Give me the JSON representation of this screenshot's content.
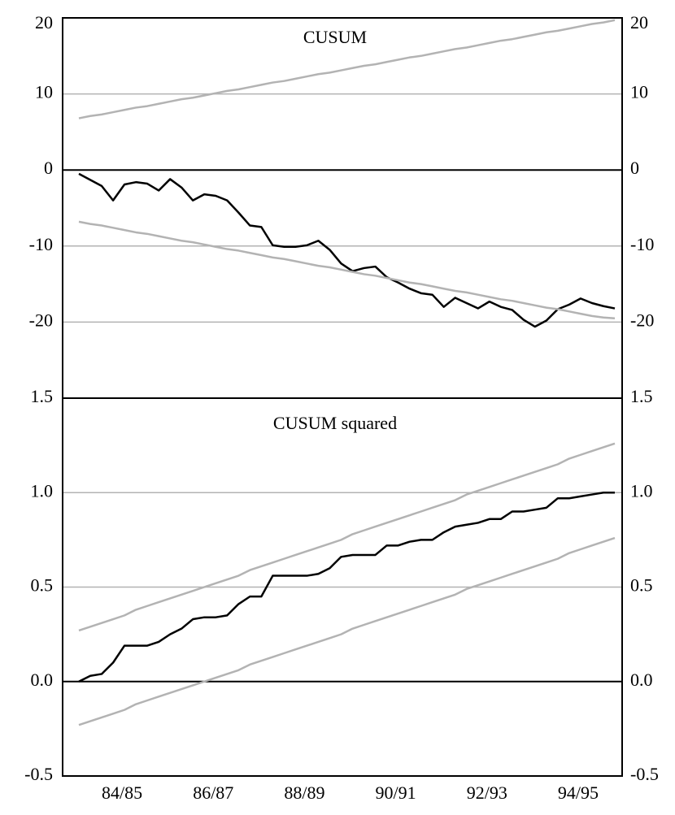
{
  "chart_data": [
    {
      "type": "line",
      "title": "CUSUM",
      "ylim": [
        -30,
        20
      ],
      "yticks": [
        -20,
        -10,
        0,
        10,
        20
      ],
      "grid": true,
      "series": [
        {
          "color": "#000000",
          "values": [
            -0.5,
            -1.3,
            -2.1,
            -4,
            -1.9,
            -1.6,
            -1.8,
            -2.7,
            -1.2,
            -2.3,
            -4,
            -3.2,
            -3.4,
            -4,
            -5.6,
            -7.3,
            -7.5,
            -9.9,
            -10.1,
            -10.1,
            -9.9,
            -9.3,
            -10.5,
            -12.3,
            -13.3,
            -12.9,
            -12.7,
            -14.1,
            -14.8,
            -15.6,
            -16.2,
            -16.4,
            -18,
            -16.8,
            -17.5,
            -18.2,
            -17.3,
            -18,
            -18.4,
            -19.7,
            -20.6,
            -19.8,
            -18.3,
            -17.7,
            -16.9,
            -17.5,
            -17.9,
            -18.2
          ]
        },
        {
          "color": "#b3b3b3",
          "values": [
            6.8,
            7.1,
            7.3,
            7.6,
            7.9,
            8.2,
            8.4,
            8.7,
            9.0,
            9.3,
            9.5,
            9.8,
            10.1,
            10.4,
            10.6,
            10.9,
            11.2,
            11.5,
            11.7,
            12.0,
            12.3,
            12.6,
            12.8,
            13.1,
            13.4,
            13.7,
            13.9,
            14.2,
            14.5,
            14.8,
            15.0,
            15.3,
            15.6,
            15.9,
            16.1,
            16.4,
            16.7,
            17.0,
            17.2,
            17.5,
            17.8,
            18.1,
            18.3,
            18.6,
            18.9,
            19.2,
            19.4,
            19.7
          ]
        },
        {
          "color": "#b3b3b3",
          "values": [
            -6.8,
            -7.1,
            -7.3,
            -7.6,
            -7.9,
            -8.2,
            -8.4,
            -8.7,
            -9.0,
            -9.3,
            -9.5,
            -9.8,
            -10.1,
            -10.4,
            -10.6,
            -10.9,
            -11.2,
            -11.5,
            -11.7,
            -12.0,
            -12.3,
            -12.6,
            -12.8,
            -13.1,
            -13.4,
            -13.7,
            -13.9,
            -14.2,
            -14.5,
            -14.8,
            -15.0,
            -15.3,
            -15.6,
            -15.9,
            -16.1,
            -16.4,
            -16.7,
            -17.0,
            -17.2,
            -17.5,
            -17.8,
            -18.1,
            -18.3,
            -18.6,
            -18.9,
            -19.2,
            -19.4,
            -19.5
          ]
        }
      ]
    },
    {
      "type": "line",
      "title": "CUSUM squared",
      "categories": [
        null,
        null,
        null,
        null,
        "84/85",
        null,
        null,
        null,
        null,
        null,
        null,
        null,
        "86/87",
        null,
        null,
        null,
        null,
        null,
        null,
        null,
        "88/89",
        null,
        null,
        null,
        null,
        null,
        null,
        null,
        "90/91",
        null,
        null,
        null,
        null,
        null,
        null,
        null,
        "92/93",
        null,
        null,
        null,
        null,
        null,
        null,
        null,
        "94/95",
        null,
        null,
        null
      ],
      "ylim": [
        -0.5,
        1.5
      ],
      "yticks": [
        -0.5,
        {
          "value": 0,
          "label": "0.0"
        },
        0.5,
        {
          "value": 1,
          "label": "1.0"
        },
        1.5
      ],
      "grid": true,
      "series": [
        {
          "color": "#000000",
          "values": [
            0.0,
            0.03,
            0.04,
            0.1,
            0.19,
            0.19,
            0.19,
            0.21,
            0.25,
            0.28,
            0.33,
            0.34,
            0.34,
            0.35,
            0.41,
            0.45,
            0.45,
            0.56,
            0.56,
            0.56,
            0.56,
            0.57,
            0.6,
            0.66,
            0.67,
            0.67,
            0.67,
            0.72,
            0.72,
            0.74,
            0.75,
            0.75,
            0.79,
            0.82,
            0.83,
            0.84,
            0.86,
            0.86,
            0.9,
            0.9,
            0.91,
            0.92,
            0.97,
            0.97,
            0.98,
            0.99,
            1.0,
            1.0
          ]
        },
        {
          "color": "#b3b3b3",
          "values": [
            0.27,
            0.29,
            0.31,
            0.33,
            0.35,
            0.38,
            0.4,
            0.42,
            0.44,
            0.46,
            0.48,
            0.5,
            0.52,
            0.54,
            0.56,
            0.59,
            0.61,
            0.63,
            0.65,
            0.67,
            0.69,
            0.71,
            0.73,
            0.75,
            0.78,
            0.8,
            0.82,
            0.84,
            0.86,
            0.88,
            0.9,
            0.92,
            0.94,
            0.96,
            0.99,
            1.01,
            1.03,
            1.05,
            1.07,
            1.09,
            1.11,
            1.13,
            1.15,
            1.18,
            1.2,
            1.22,
            1.24,
            1.26
          ]
        },
        {
          "color": "#b3b3b3",
          "values": [
            -0.23,
            -0.21,
            -0.19,
            -0.17,
            -0.15,
            -0.12,
            -0.1,
            -0.08,
            -0.06,
            -0.04,
            -0.02,
            0.0,
            0.02,
            0.04,
            0.06,
            0.09,
            0.11,
            0.13,
            0.15,
            0.17,
            0.19,
            0.21,
            0.23,
            0.25,
            0.28,
            0.3,
            0.32,
            0.34,
            0.36,
            0.38,
            0.4,
            0.42,
            0.44,
            0.46,
            0.49,
            0.51,
            0.53,
            0.55,
            0.57,
            0.59,
            0.61,
            0.63,
            0.65,
            0.68,
            0.7,
            0.72,
            0.74,
            0.76
          ]
        }
      ]
    }
  ]
}
